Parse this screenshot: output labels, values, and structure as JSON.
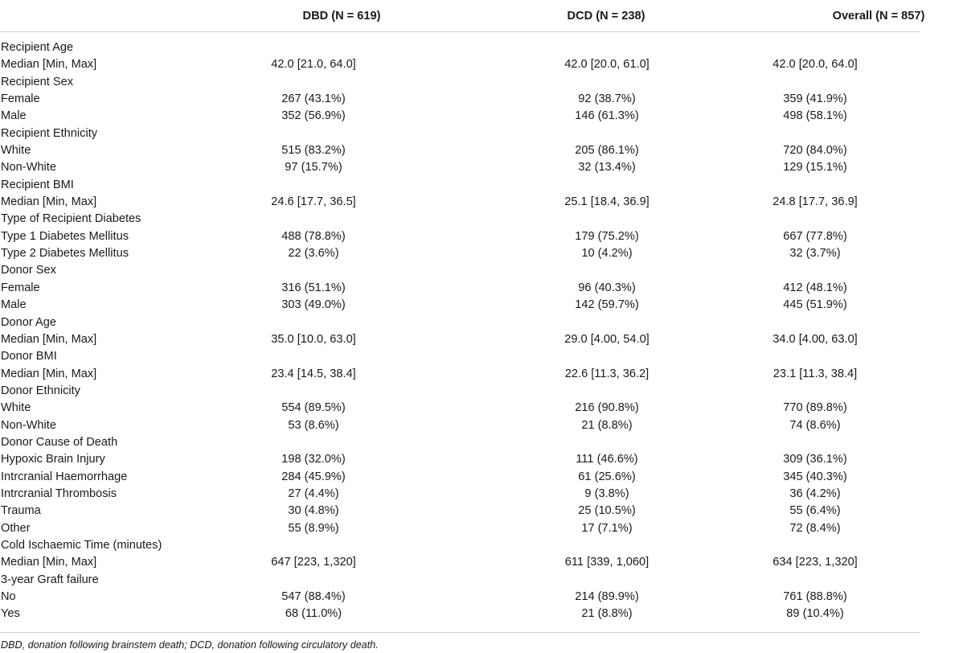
{
  "header": {
    "label": "",
    "dbd": "DBD (N = 619)",
    "dcd": "DCD (N = 238)",
    "overall": "Overall (N = 857)"
  },
  "rows": [
    {
      "label": "Recipient Age",
      "dbd": "",
      "dcd": "",
      "overall": ""
    },
    {
      "label": "Median [Min, Max]",
      "dbd": "42.0 [21.0, 64.0]",
      "dcd": "42.0 [20.0, 61.0]",
      "overall": "42.0 [20.0, 64.0]"
    },
    {
      "label": "Recipient Sex",
      "dbd": "",
      "dcd": "",
      "overall": ""
    },
    {
      "label": "Female",
      "dbd": "267 (43.1%)",
      "dcd": "92 (38.7%)",
      "overall": "359 (41.9%)"
    },
    {
      "label": "Male",
      "dbd": "352 (56.9%)",
      "dcd": "146 (61.3%)",
      "overall": "498 (58.1%)"
    },
    {
      "label": "Recipient Ethnicity",
      "dbd": "",
      "dcd": "",
      "overall": ""
    },
    {
      "label": "White",
      "dbd": "515 (83.2%)",
      "dcd": "205 (86.1%)",
      "overall": "720 (84.0%)"
    },
    {
      "label": "Non-White",
      "dbd": "97 (15.7%)",
      "dcd": "32 (13.4%)",
      "overall": "129 (15.1%)"
    },
    {
      "label": "Recipient BMI",
      "dbd": "",
      "dcd": "",
      "overall": ""
    },
    {
      "label": "Median [Min, Max]",
      "dbd": "24.6 [17.7, 36.5]",
      "dcd": "25.1 [18.4, 36.9]",
      "overall": "24.8 [17.7, 36.9]"
    },
    {
      "label": "Type of Recipient Diabetes",
      "dbd": "",
      "dcd": "",
      "overall": ""
    },
    {
      "label": "Type 1 Diabetes Mellitus",
      "dbd": "488 (78.8%)",
      "dcd": "179 (75.2%)",
      "overall": "667 (77.8%)"
    },
    {
      "label": "Type 2 Diabetes Mellitus",
      "dbd": "22 (3.6%)",
      "dcd": "10 (4.2%)",
      "overall": "32 (3.7%)"
    },
    {
      "label": "Donor Sex",
      "dbd": "",
      "dcd": "",
      "overall": ""
    },
    {
      "label": "Female",
      "dbd": "316 (51.1%)",
      "dcd": "96 (40.3%)",
      "overall": "412 (48.1%)"
    },
    {
      "label": "Male",
      "dbd": "303 (49.0%)",
      "dcd": "142 (59.7%)",
      "overall": "445 (51.9%)"
    },
    {
      "label": "Donor Age",
      "dbd": "",
      "dcd": "",
      "overall": ""
    },
    {
      "label": "Median [Min, Max]",
      "dbd": "35.0 [10.0, 63.0]",
      "dcd": "29.0 [4.00, 54.0]",
      "overall": "34.0 [4.00, 63.0]"
    },
    {
      "label": "Donor BMI",
      "dbd": "",
      "dcd": "",
      "overall": ""
    },
    {
      "label": "Median [Min, Max]",
      "dbd": "23.4 [14.5, 38.4]",
      "dcd": "22.6 [11.3, 36.2]",
      "overall": "23.1 [11.3, 38.4]"
    },
    {
      "label": "Donor Ethnicity",
      "dbd": "",
      "dcd": "",
      "overall": ""
    },
    {
      "label": "White",
      "dbd": "554 (89.5%)",
      "dcd": "216 (90.8%)",
      "overall": "770 (89.8%)"
    },
    {
      "label": "Non-White",
      "dbd": "53 (8.6%)",
      "dcd": "21 (8.8%)",
      "overall": "74 (8.6%)"
    },
    {
      "label": "Donor Cause of Death",
      "dbd": "",
      "dcd": "",
      "overall": ""
    },
    {
      "label": "Hypoxic Brain Injury",
      "dbd": "198 (32.0%)",
      "dcd": "111 (46.6%)",
      "overall": "309 (36.1%)"
    },
    {
      "label": "Intrcranial Haemorrhage",
      "dbd": "284 (45.9%)",
      "dcd": "61 (25.6%)",
      "overall": "345 (40.3%)"
    },
    {
      "label": "Intrcranial Thrombosis",
      "dbd": "27 (4.4%)",
      "dcd": "9 (3.8%)",
      "overall": "36 (4.2%)"
    },
    {
      "label": "Trauma",
      "dbd": "30 (4.8%)",
      "dcd": "25 (10.5%)",
      "overall": "55 (6.4%)"
    },
    {
      "label": "Other",
      "dbd": "55 (8.9%)",
      "dcd": "17 (7.1%)",
      "overall": "72 (8.4%)"
    },
    {
      "label": "Cold Ischaemic Time (minutes)",
      "dbd": "",
      "dcd": "",
      "overall": ""
    },
    {
      "label": "Median [Min, Max]",
      "dbd": "647 [223, 1,320]",
      "dcd": "611 [339, 1,060]",
      "overall": "634 [223, 1,320]"
    },
    {
      "label": "3-year Graft failure",
      "dbd": "",
      "dcd": "",
      "overall": ""
    },
    {
      "label": "No",
      "dbd": "547 (88.4%)",
      "dcd": "214 (89.9%)",
      "overall": "761 (88.8%)"
    },
    {
      "label": "Yes",
      "dbd": "68 (11.0%)",
      "dcd": "21 (8.8%)",
      "overall": "89 (10.4%)"
    }
  ],
  "footnote": "DBD, donation following brainstem death; DCD, donation following circulatory death."
}
